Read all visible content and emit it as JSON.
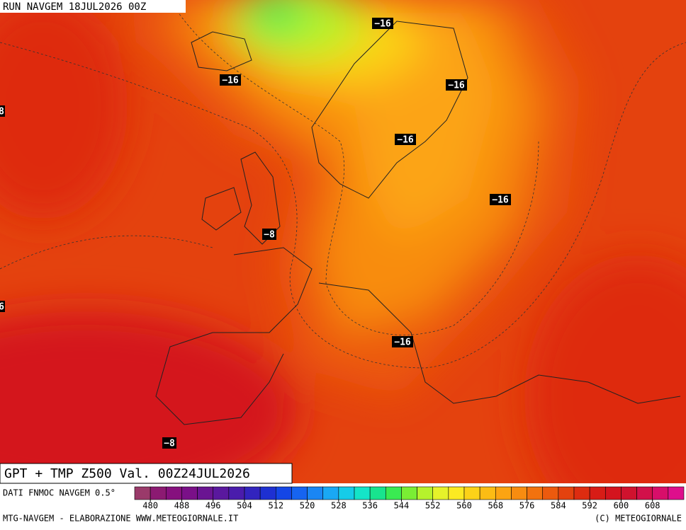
{
  "header": {
    "run": "RUN NAVGEM 18JUL2026 00Z"
  },
  "map": {
    "title": "GPT + TMP Z500 Val. 00Z24JUL2026",
    "labels": [
      "−16",
      "−16",
      "−16",
      "−16",
      "−16",
      "−8",
      "−16",
      "−8",
      "8",
      "6"
    ]
  },
  "colorbar": {
    "source": "DATI FNMOC NAVGEM 0.5°",
    "ticks": [
      480,
      488,
      496,
      504,
      512,
      520,
      528,
      536,
      544,
      552,
      560,
      568,
      576,
      584,
      592,
      600,
      608
    ],
    "colors": [
      "#9a3a6a",
      "#8c1a72",
      "#86107e",
      "#7a1088",
      "#6a1492",
      "#5a189e",
      "#4a1cac",
      "#3224be",
      "#1e30d2",
      "#1446e6",
      "#1664f0",
      "#1a86f4",
      "#1aa8f4",
      "#16cce8",
      "#14e4c8",
      "#18e48e",
      "#3aea52",
      "#7aee34",
      "#b6f22c",
      "#e6f22a",
      "#fcea22",
      "#fcd218",
      "#fcbc14",
      "#fca412",
      "#f88c10",
      "#f2720e",
      "#ec5a0e",
      "#e4420e",
      "#de2c10",
      "#d81c16",
      "#d4141e",
      "#d0122e",
      "#d2104a",
      "#d80e6a",
      "#de0e8c"
    ]
  },
  "footer": {
    "left": "MTG-NAVGEM - ELABORAZIONE WWW.METEOGIORNALE.IT",
    "right": "(C) METEOGIORNALE"
  }
}
